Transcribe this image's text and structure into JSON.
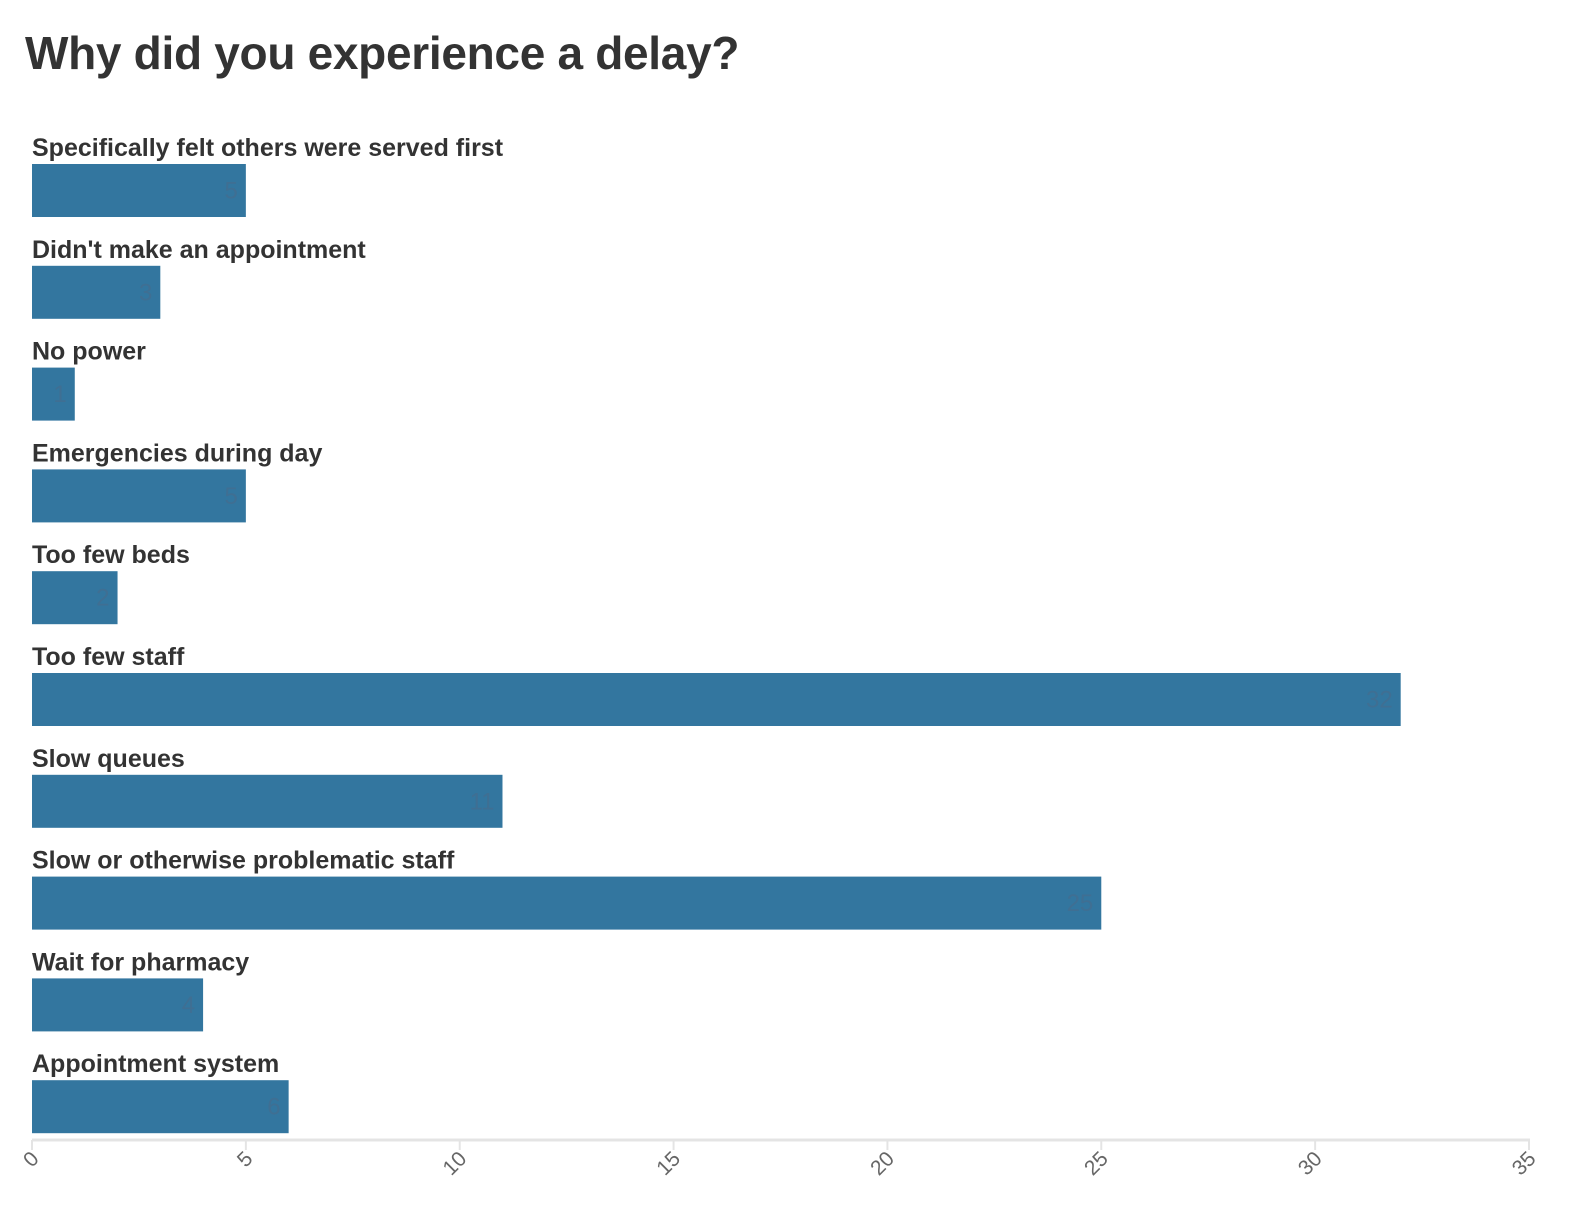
{
  "chart_data": {
    "type": "bar",
    "orientation": "horizontal",
    "title": "Why did you experience a delay?",
    "categories": [
      "Specifically felt others were served first",
      "Didn't make an appointment",
      "No power",
      "Emergencies during day",
      "Too few beds",
      "Too few staff",
      "Slow queues",
      "Slow or otherwise problematic staff",
      "Wait for pharmacy",
      "Appointment system"
    ],
    "values": [
      5,
      3,
      1,
      5,
      2,
      32,
      11,
      25,
      4,
      6
    ],
    "xlim": [
      0,
      35
    ],
    "xticks": [
      0,
      5,
      10,
      15,
      20,
      25,
      30,
      35
    ],
    "xlabel": "",
    "ylabel": "",
    "grid": false,
    "data_labels": true,
    "bar_color": "#33769f",
    "value_label_color": "#3f6f93",
    "axis_color": "#e4e4e4"
  }
}
